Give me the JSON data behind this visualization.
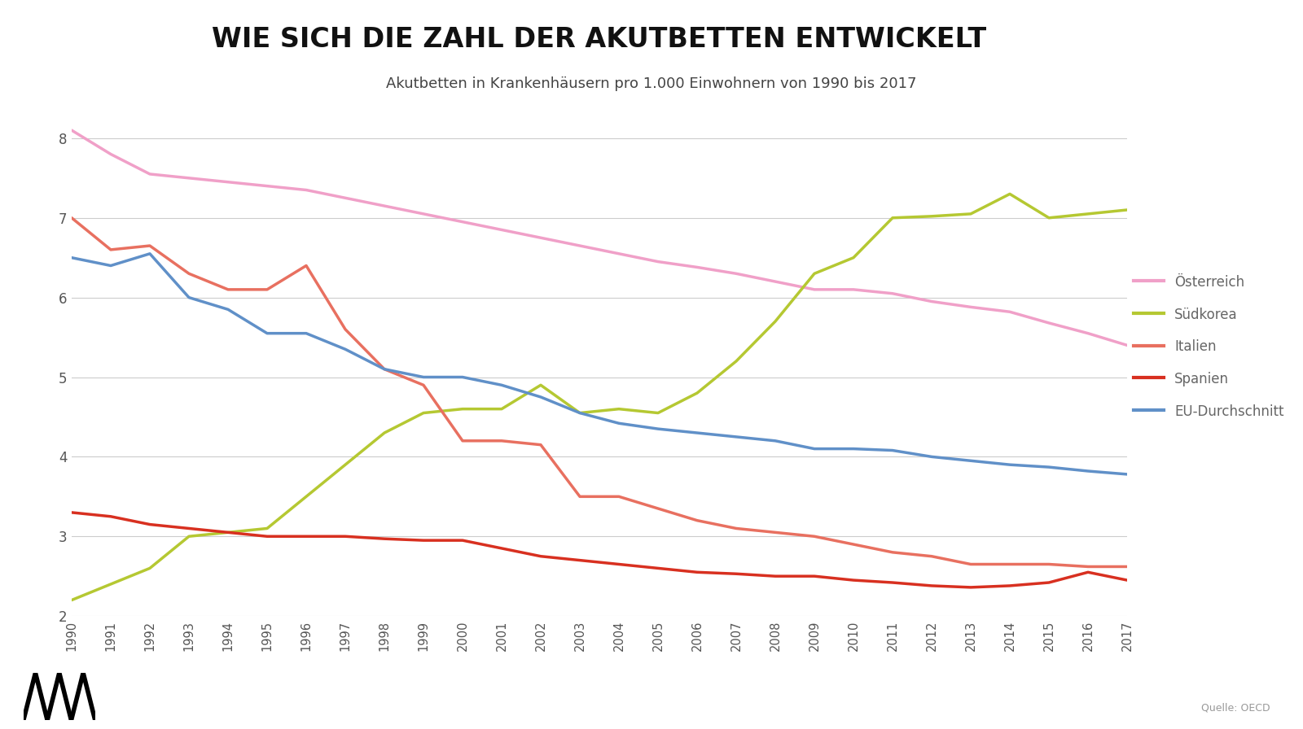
{
  "title": "WIE SICH DIE ZAHL DER AKUTBETTEN ENTWICKELT",
  "subtitle": "Akutbetten in Krankenhäusern pro 1.000 Einwohnern von 1990 bis 2017",
  "source_text": "Quelle: OECD",
  "years": [
    1990,
    1991,
    1992,
    1993,
    1994,
    1995,
    1996,
    1997,
    1998,
    1999,
    2000,
    2001,
    2002,
    2003,
    2004,
    2005,
    2006,
    2007,
    2008,
    2009,
    2010,
    2011,
    2012,
    2013,
    2014,
    2015,
    2016,
    2017
  ],
  "oesterreich": [
    8.1,
    7.8,
    7.55,
    7.5,
    7.45,
    7.4,
    7.35,
    7.25,
    7.15,
    7.05,
    6.95,
    6.85,
    6.75,
    6.65,
    6.55,
    6.45,
    6.38,
    6.3,
    6.2,
    6.1,
    6.1,
    6.05,
    5.95,
    5.88,
    5.82,
    5.68,
    5.55,
    5.4
  ],
  "suedkorea": [
    2.2,
    2.4,
    2.6,
    3.0,
    3.05,
    3.1,
    3.5,
    3.9,
    4.3,
    4.55,
    4.6,
    4.6,
    4.9,
    4.55,
    4.6,
    4.55,
    4.8,
    5.2,
    5.7,
    6.3,
    6.5,
    7.0,
    7.02,
    7.05,
    7.3,
    7.0,
    7.05,
    7.1
  ],
  "italien": [
    7.0,
    6.6,
    6.65,
    6.3,
    6.1,
    6.1,
    6.4,
    5.6,
    5.1,
    4.9,
    4.2,
    4.2,
    4.15,
    3.5,
    3.5,
    3.35,
    3.2,
    3.1,
    3.05,
    3.0,
    2.9,
    2.8,
    2.75,
    2.65,
    2.65,
    2.65,
    2.62,
    2.62
  ],
  "spanien": [
    3.3,
    3.25,
    3.15,
    3.1,
    3.05,
    3.0,
    3.0,
    3.0,
    2.97,
    2.95,
    2.95,
    2.85,
    2.75,
    2.7,
    2.65,
    2.6,
    2.55,
    2.53,
    2.5,
    2.5,
    2.45,
    2.42,
    2.38,
    2.36,
    2.38,
    2.42,
    2.55,
    2.45
  ],
  "eu_durchschnitt": [
    6.5,
    6.4,
    6.55,
    6.0,
    5.85,
    5.55,
    5.55,
    5.35,
    5.1,
    5.0,
    5.0,
    4.9,
    4.75,
    4.55,
    4.42,
    4.35,
    4.3,
    4.25,
    4.2,
    4.1,
    4.1,
    4.08,
    4.0,
    3.95,
    3.9,
    3.87,
    3.82,
    3.78
  ],
  "color_oesterreich": "#f0a0c8",
  "color_suedkorea": "#b5c832",
  "color_italien": "#e87060",
  "color_spanien": "#d83020",
  "color_eu": "#6090c8",
  "ylim_min": 2,
  "ylim_max": 8.5,
  "yticks": [
    2,
    3,
    4,
    5,
    6,
    7,
    8
  ],
  "background_color": "#ffffff",
  "grid_color": "#cccccc",
  "linewidth": 2.5,
  "legend_labels": [
    "Österreich",
    "Südkorea",
    "Italien",
    "Spanien",
    "EU-Durchschnitt"
  ],
  "legend_colors": [
    "#f0a0c8",
    "#b5c832",
    "#e87060",
    "#d83020",
    "#6090c8"
  ]
}
